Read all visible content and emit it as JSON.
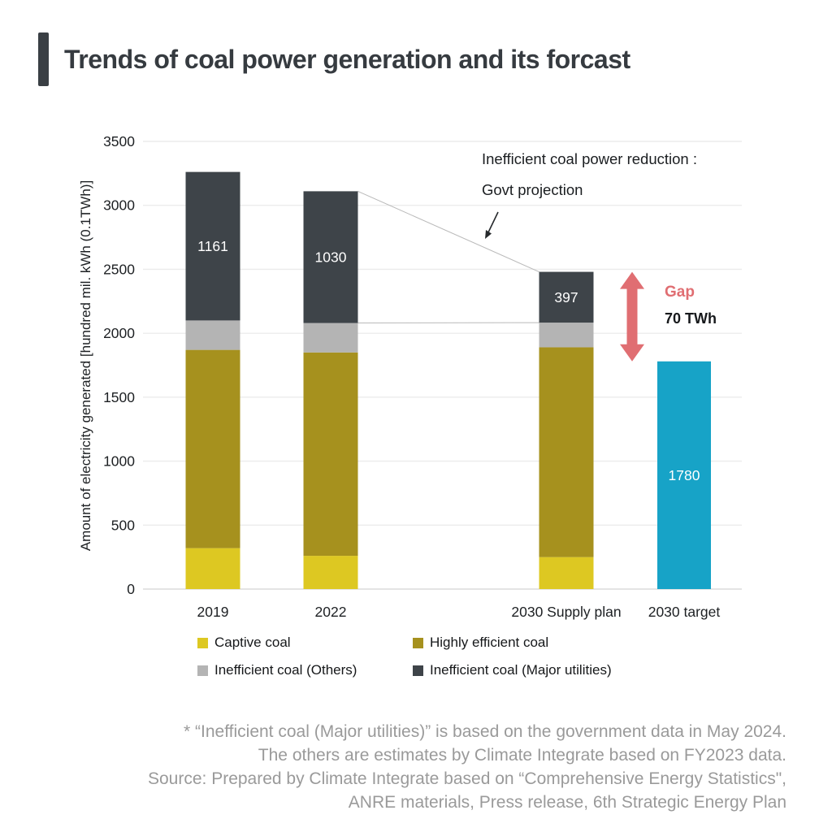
{
  "header": {
    "title": "Trends of coal power generation and its forcast"
  },
  "chart_data": {
    "type": "bar",
    "stacked": true,
    "title": "Trends of coal power generation and its forcast",
    "xlabel": "",
    "ylabel": "Amount of electricity generated [hundred mil. kWh (0.1TWh)]",
    "ylim": [
      0,
      3500
    ],
    "ytick_step": 500,
    "grid": true,
    "legend_position": "bottom",
    "categories": [
      "2019",
      "2022",
      "2030 Supply plan",
      "2030 target"
    ],
    "series": [
      {
        "name": "Captive coal",
        "color": "#ddc822",
        "values": [
          320,
          260,
          250,
          null
        ]
      },
      {
        "name": "Highly efficient coal",
        "color": "#a6911e",
        "values": [
          1550,
          1590,
          1640,
          null
        ]
      },
      {
        "name": "Inefficient coal (Others)",
        "color": "#b4b4b4",
        "values": [
          230,
          230,
          193,
          null
        ]
      },
      {
        "name": "Inefficient coal (Major utilities)",
        "color": "#3e4449",
        "values": [
          1161,
          1030,
          397,
          null
        ],
        "show_data_labels": true
      }
    ],
    "target_bar": {
      "category": "2030 target",
      "value": 1780,
      "color": "#17a3c7",
      "data_label": "1780"
    },
    "totals": [
      3261,
      3110,
      2480,
      1780
    ],
    "bar_data_labels": [
      "1161",
      "1030",
      "397",
      "1780"
    ],
    "connector_lines": [
      {
        "from_category": "2022",
        "from_value": 3110,
        "to_category": "2030 Supply plan",
        "to_value": 2480
      },
      {
        "from_category": "2022",
        "from_value": 2080,
        "to_category": "2030 Supply plan",
        "to_value": 2083
      }
    ],
    "gap_annotation": {
      "label": "Gap",
      "value_label": "70 TWh",
      "from_value": 2480,
      "to_value": 1780,
      "color": "#e06e72"
    }
  },
  "annotation": {
    "line1": "Inefficient coal power reduction :",
    "line2": "Govt projection"
  },
  "gap": {
    "label": "Gap",
    "value": "70 TWh",
    "color": "#e06e72"
  },
  "footnote": {
    "lines": [
      "* “Inefficient coal (Major utilities)” is based on the government data in May 2024.",
      "The others are estimates by Climate Integrate based on FY2023 data.",
      "Source: Prepared by Climate Integrate based on “Comprehensive Energy Statistics\",",
      "ANRE materials, Press release, 6th Strategic Energy Plan"
    ]
  },
  "colors": {
    "title": "#363b40",
    "grid": "#ececec",
    "baseline": "#dcdcdc",
    "connector": "#b9b9b9",
    "tick_text": "#1d2023",
    "footnote": "#9a9a9a"
  }
}
